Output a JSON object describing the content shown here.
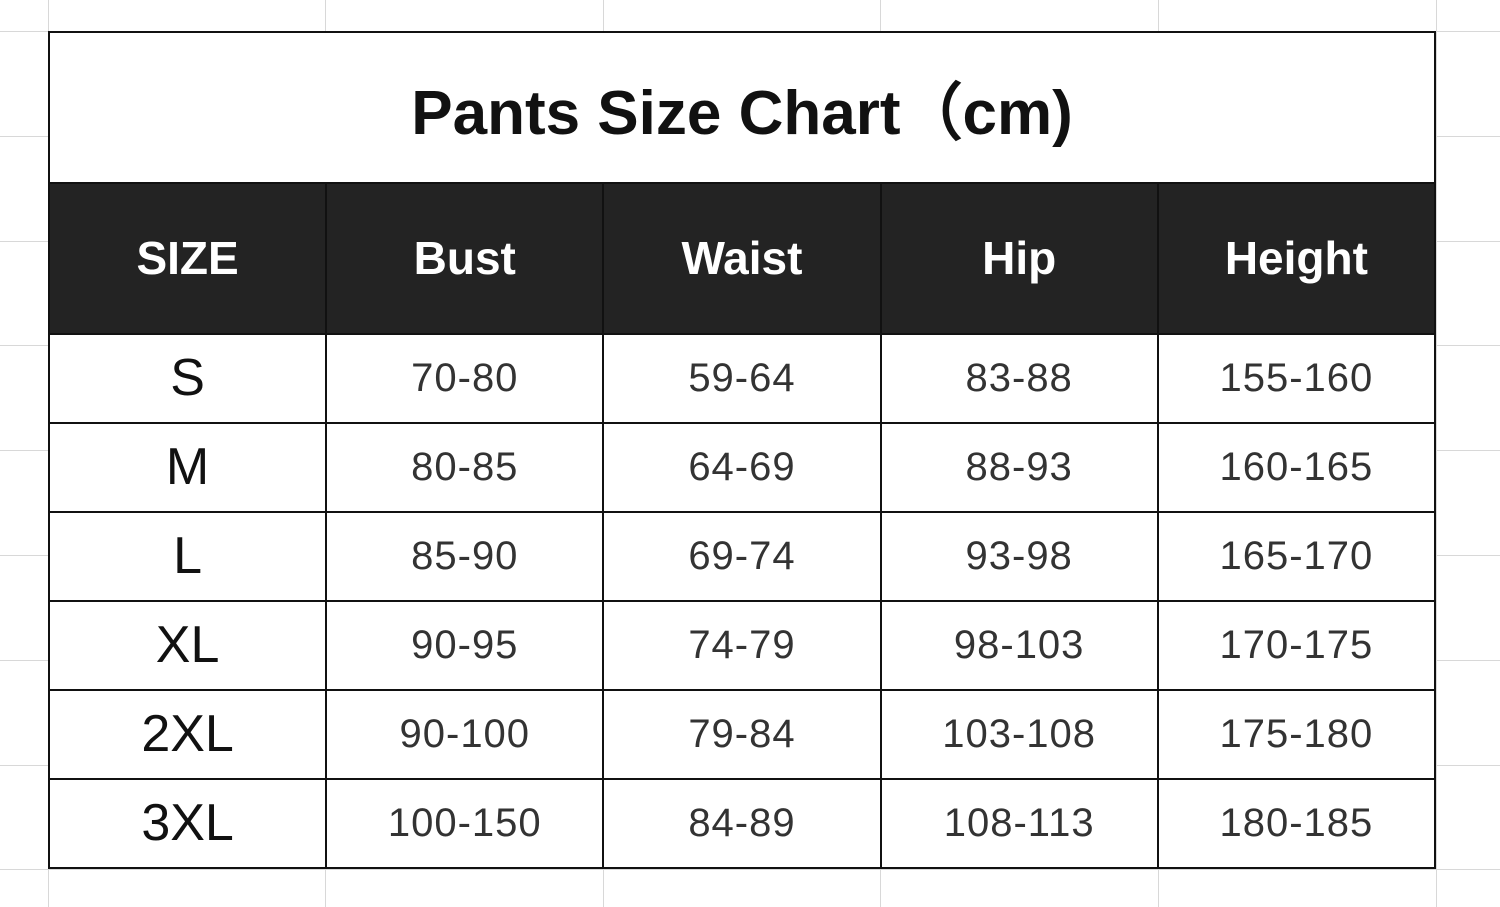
{
  "title": "Pants Size Chart（cm)",
  "columns": [
    "SIZE",
    "Bust",
    "Waist",
    "Hip",
    "Height"
  ],
  "rows": [
    [
      "S",
      "70-80",
      "59-64",
      "83-88",
      "155-160"
    ],
    [
      "M",
      "80-85",
      "64-69",
      "88-93",
      "160-165"
    ],
    [
      "L",
      "85-90",
      "69-74",
      "93-98",
      "165-170"
    ],
    [
      "XL",
      "90-95",
      "74-79",
      "98-103",
      "170-175"
    ],
    [
      "2XL",
      "90-100",
      "79-84",
      "103-108",
      "175-180"
    ],
    [
      "3XL",
      "100-150",
      "84-89",
      "108-113",
      "180-185"
    ]
  ],
  "colors": {
    "header_bg": "#232323",
    "header_text": "#ffffff",
    "border": "#111111"
  }
}
